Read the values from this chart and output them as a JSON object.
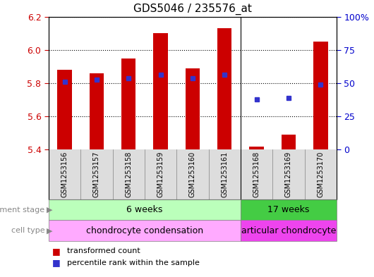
{
  "title": "GDS5046 / 235576_at",
  "samples": [
    "GSM1253156",
    "GSM1253157",
    "GSM1253158",
    "GSM1253159",
    "GSM1253160",
    "GSM1253161",
    "GSM1253168",
    "GSM1253169",
    "GSM1253170"
  ],
  "bar_bottoms": [
    5.4,
    5.4,
    5.4,
    5.4,
    5.4,
    5.4,
    5.4,
    5.4,
    5.4
  ],
  "bar_tops": [
    5.88,
    5.86,
    5.95,
    6.1,
    5.89,
    6.13,
    5.42,
    5.49,
    6.05
  ],
  "blue_dot_y": [
    5.81,
    5.82,
    5.83,
    5.85,
    5.83,
    5.85,
    5.7,
    5.71,
    5.79
  ],
  "ylim": [
    5.4,
    6.2
  ],
  "yticks_left": [
    5.4,
    5.6,
    5.8,
    6.0,
    6.2
  ],
  "yticks_right": [
    0,
    25,
    50,
    75,
    100
  ],
  "bar_color": "#cc0000",
  "blue_color": "#3333cc",
  "bar_width": 0.45,
  "dev_stage_labels": [
    "6 weeks",
    "17 weeks"
  ],
  "dev_stage_color_light": "#bbffbb",
  "dev_stage_color_dark": "#44cc44",
  "cell_type_labels": [
    "chondrocyte condensation",
    "articular chondrocyte"
  ],
  "cell_type_color_light": "#ffaaff",
  "cell_type_color_dark": "#ee44ee",
  "tick_color_left": "#cc0000",
  "tick_color_right": "#0000cc",
  "label_color": "#888888",
  "sample_bg_color": "#dddddd",
  "group_split": 6
}
